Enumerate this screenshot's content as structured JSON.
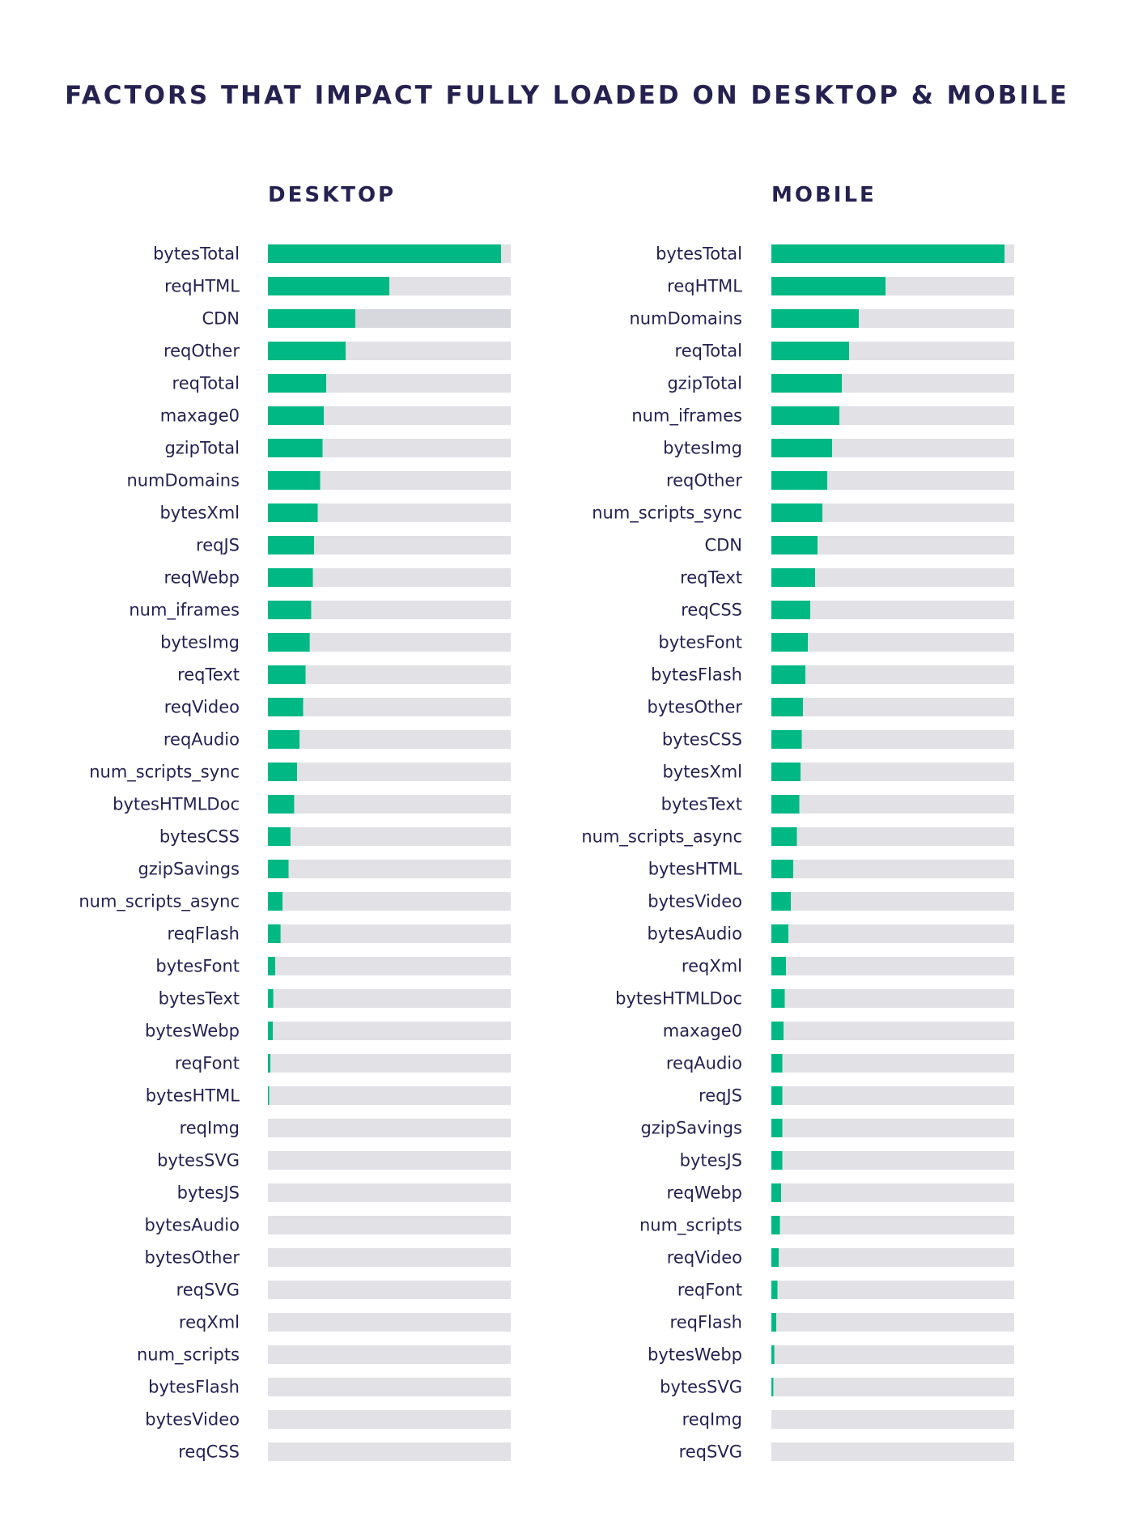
{
  "title": "FACTORS THAT IMPACT FULLY LOADED ON DESKTOP & MOBILE",
  "colors": {
    "bar": "#00b884",
    "track": "#e1e1e6",
    "track_highlight": "#d7d7de",
    "text": "#252250"
  },
  "chart_data": [
    {
      "type": "bar",
      "orientation": "horizontal",
      "title": "DESKTOP",
      "xlim": [
        0,
        1
      ],
      "categories": [
        "bytesTotal",
        "reqHTML",
        "CDN",
        "reqOther",
        "reqTotal",
        "maxage0",
        "gzipTotal",
        "numDomains",
        "bytesXml",
        "reqJS",
        "reqWebp",
        "num_iframes",
        "bytesImg",
        "reqText",
        "reqVideo",
        "reqAudio",
        "num_scripts_sync",
        "bytesHTMLDoc",
        "bytesCSS",
        "gzipSavings",
        "num_scripts_async",
        "reqFlash",
        "bytesFont",
        "bytesText",
        "bytesWebp",
        "reqFont",
        "bytesHTML",
        "reqImg",
        "bytesSVG",
        "bytesJS",
        "bytesAudio",
        "bytesOther",
        "reqSVG",
        "reqXml",
        "num_scripts",
        "bytesFlash",
        "bytesVideo",
        "reqCSS"
      ],
      "values": [
        0.96,
        0.5,
        0.36,
        0.32,
        0.24,
        0.23,
        0.225,
        0.215,
        0.205,
        0.19,
        0.185,
        0.178,
        0.172,
        0.155,
        0.145,
        0.13,
        0.12,
        0.108,
        0.093,
        0.085,
        0.06,
        0.052,
        0.03,
        0.022,
        0.02,
        0.01,
        0.005,
        0,
        0,
        0,
        0,
        0,
        0,
        0,
        0,
        0,
        0,
        0
      ]
    },
    {
      "type": "bar",
      "orientation": "horizontal",
      "title": "MOBILE",
      "xlim": [
        0,
        1
      ],
      "categories": [
        "bytesTotal",
        "reqHTML",
        "numDomains",
        "reqTotal",
        "gzipTotal",
        "num_iframes",
        "bytesImg",
        "reqOther",
        "num_scripts_sync",
        "CDN",
        "reqText",
        "reqCSS",
        "bytesFont",
        "bytesFlash",
        "bytesOther",
        "bytesCSS",
        "bytesXml",
        "bytesText",
        "num_scripts_async",
        "bytesHTML",
        "bytesVideo",
        "bytesAudio",
        "reqXml",
        "bytesHTMLDoc",
        "maxage0",
        "reqAudio",
        "reqJS",
        "gzipSavings",
        "bytesJS",
        "reqWebp",
        "num_scripts",
        "reqVideo",
        "reqFont",
        "reqFlash",
        "bytesWebp",
        "bytesSVG",
        "reqImg",
        "reqSVG"
      ],
      "values": [
        0.96,
        0.47,
        0.36,
        0.32,
        0.29,
        0.28,
        0.25,
        0.23,
        0.21,
        0.19,
        0.18,
        0.16,
        0.15,
        0.14,
        0.13,
        0.125,
        0.12,
        0.115,
        0.105,
        0.09,
        0.08,
        0.07,
        0.06,
        0.055,
        0.05,
        0.045,
        0.045,
        0.045,
        0.045,
        0.04,
        0.035,
        0.03,
        0.025,
        0.02,
        0.012,
        0.008,
        0,
        0
      ]
    }
  ]
}
